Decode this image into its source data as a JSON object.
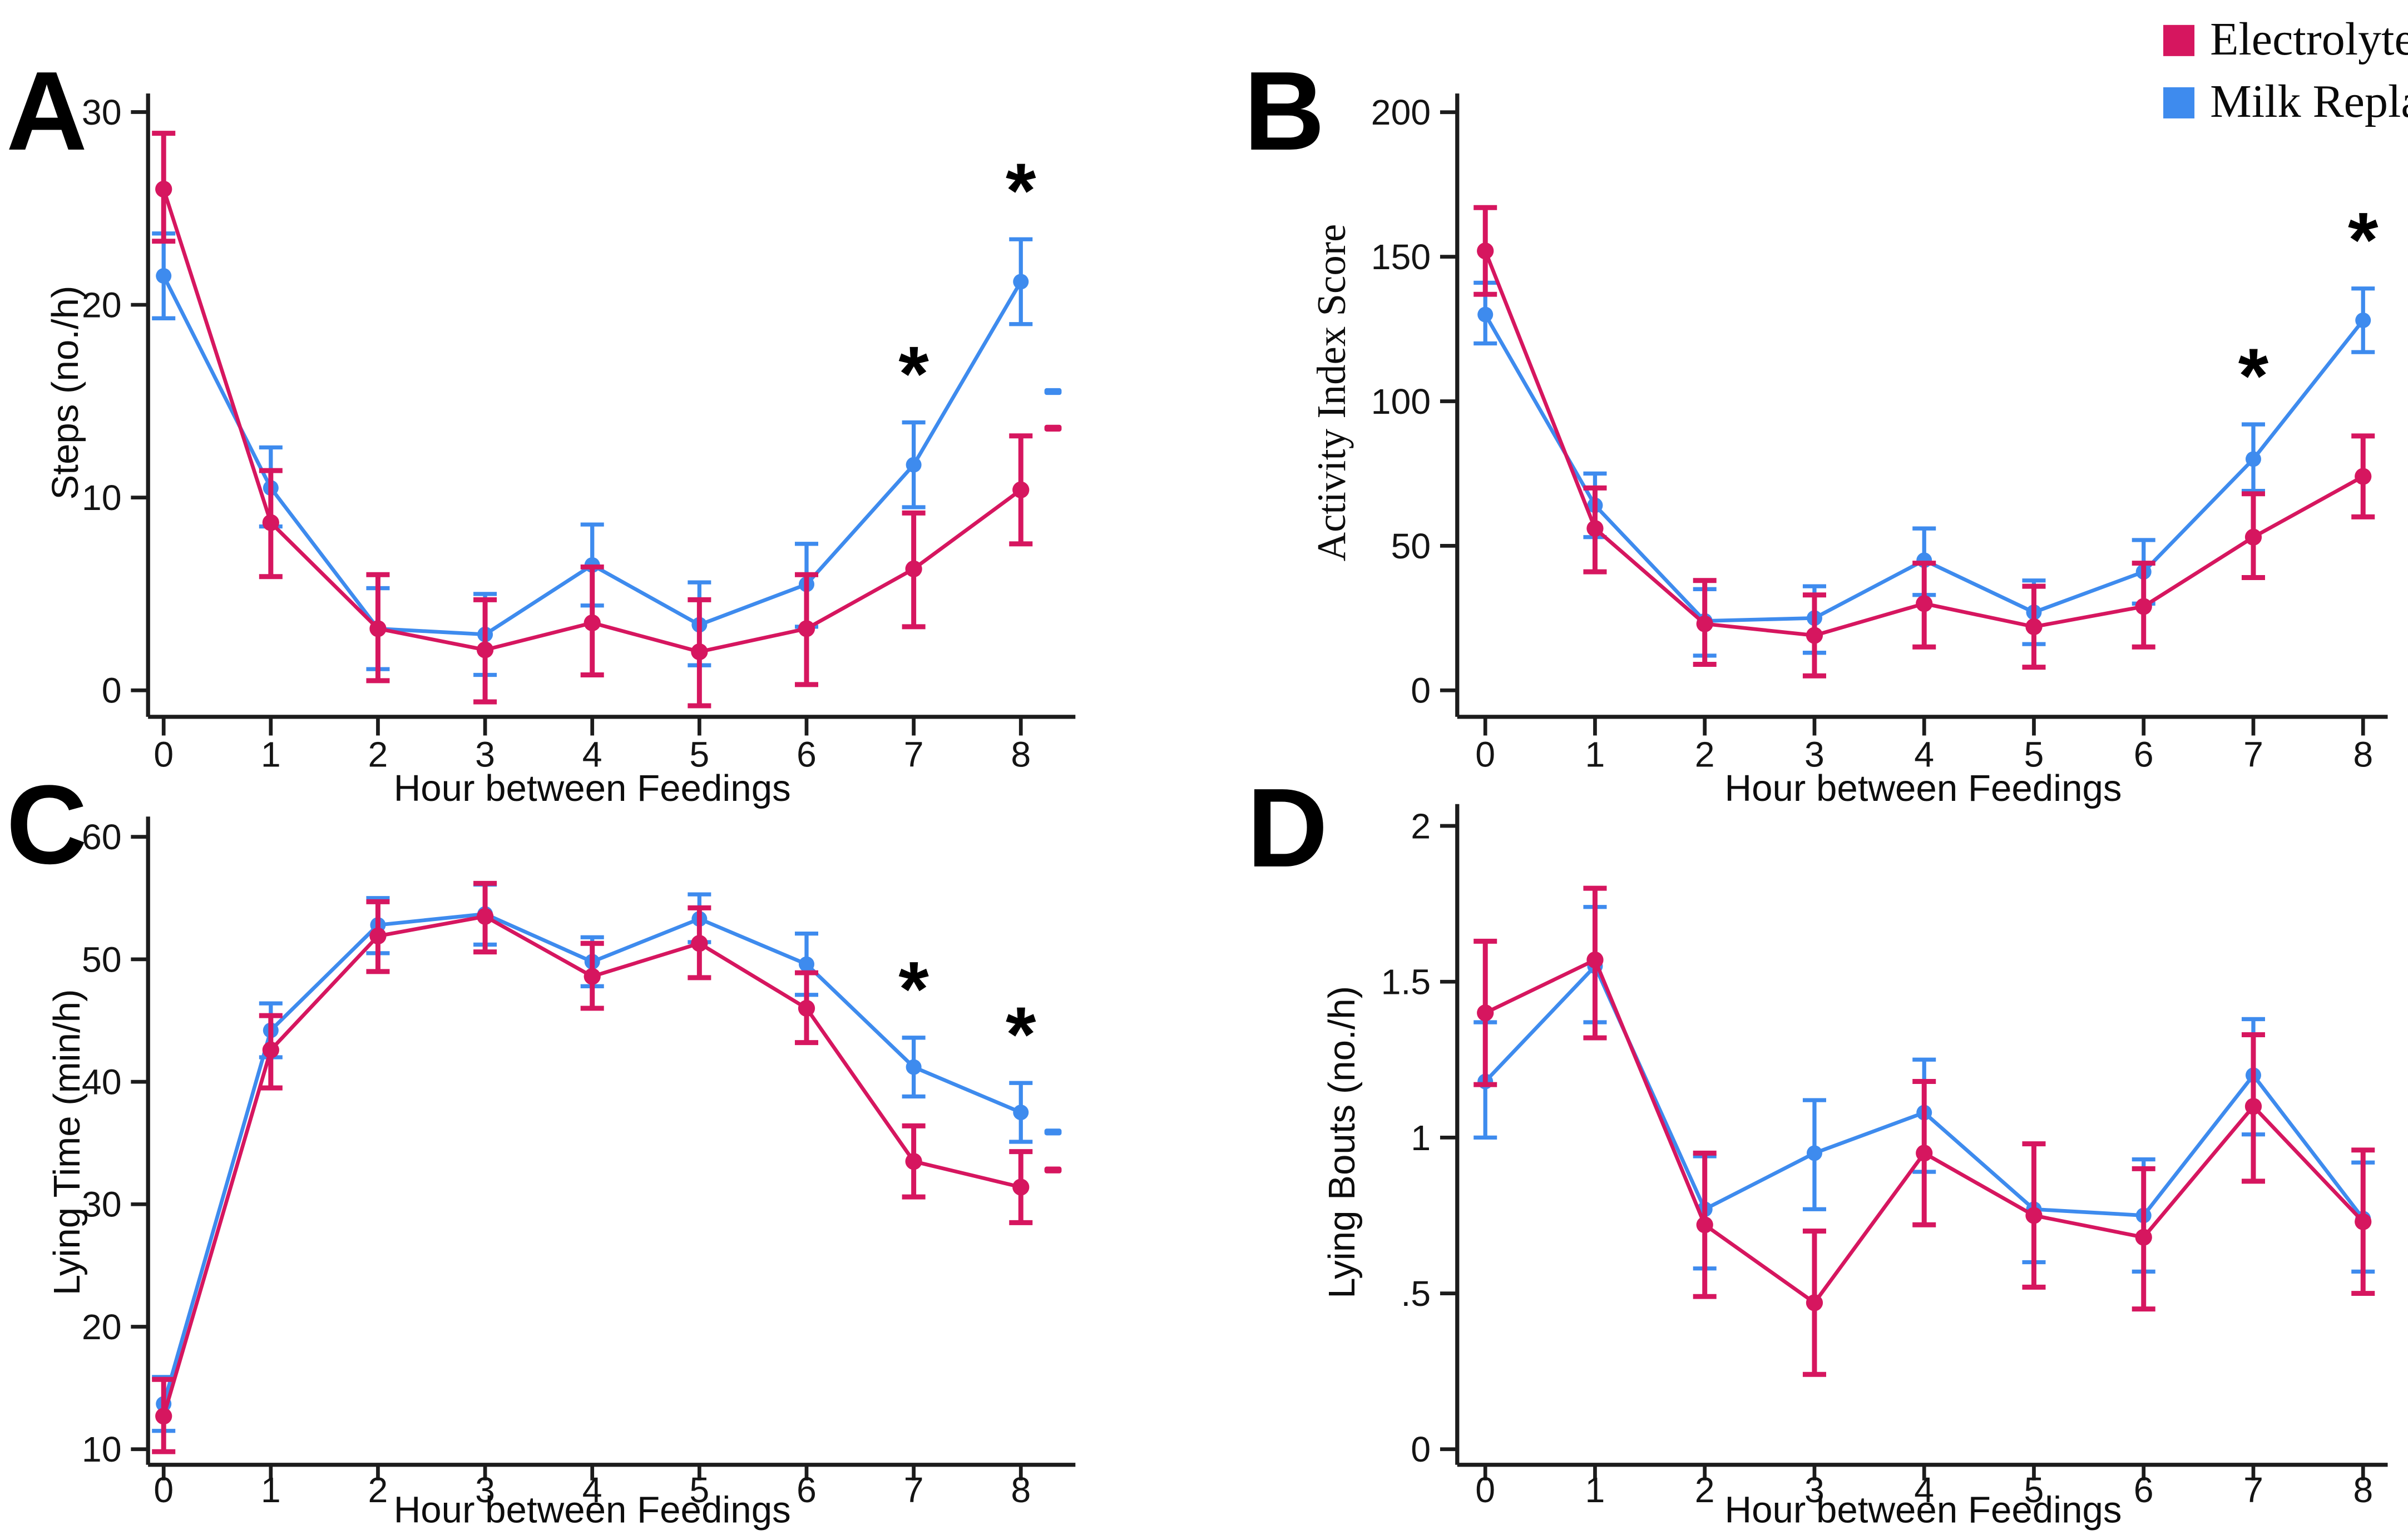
{
  "figure": {
    "background": "#ffffff",
    "accent_colors": {
      "electrolyte": "#d6165f",
      "milk_replacer": "#3e8bee"
    }
  },
  "legend": {
    "items": [
      {
        "label": "Electrolyte",
        "color": "#d6165f"
      },
      {
        "label": "Milk Replacer",
        "color": "#3e8bee"
      }
    ]
  },
  "chart_data": [
    {
      "panel_label": "A",
      "type": "line",
      "xlabel": "Hour between Feedings",
      "ylabel": "Steps (no./h)",
      "x": [
        0,
        1,
        2,
        3,
        4,
        5,
        6,
        7,
        8
      ],
      "ytick_values": [
        0,
        10,
        20,
        30
      ],
      "ytick_labels": [
        "0",
        "10",
        "20",
        "30"
      ],
      "ylim": [
        -2,
        31
      ],
      "grid": false,
      "series": [
        {
          "name": "Electrolyte",
          "color": "#d6165f",
          "values": [
            26.0,
            8.7,
            3.2,
            2.1,
            3.5,
            2.0,
            3.2,
            6.3,
            10.4
          ],
          "ci_low": [
            23.3,
            5.9,
            0.5,
            -0.6,
            0.8,
            -0.8,
            0.3,
            3.3,
            7.6
          ],
          "ci_high": [
            28.9,
            11.4,
            6.0,
            4.7,
            6.4,
            4.7,
            6.0,
            9.2,
            13.2
          ]
        },
        {
          "name": "Milk Replacer",
          "color": "#3e8bee",
          "values": [
            21.5,
            10.5,
            3.2,
            2.9,
            6.5,
            3.4,
            5.5,
            11.7,
            21.2
          ],
          "ci_low": [
            19.3,
            8.5,
            1.1,
            0.8,
            4.4,
            1.3,
            3.3,
            9.5,
            19.0
          ],
          "ci_high": [
            23.7,
            12.6,
            5.3,
            5.0,
            8.6,
            5.6,
            7.6,
            13.9,
            23.4
          ]
        }
      ],
      "significance_at_x": [
        7,
        8
      ],
      "significance_symbol": "*",
      "stray_marks": [
        {
          "series": "Milk Replacer",
          "x": 8.3,
          "value": 15.5
        },
        {
          "series": "Electrolyte",
          "x": 8.3,
          "value": 13.6
        }
      ]
    },
    {
      "panel_label": "B",
      "type": "line",
      "xlabel": "Hour between Feedings",
      "ylabel": "Activity Index Score",
      "x": [
        0,
        1,
        2,
        3,
        4,
        5,
        6,
        7,
        8
      ],
      "ytick_values": [
        0,
        50,
        100,
        150,
        200
      ],
      "ytick_labels": [
        "0",
        "50",
        "100",
        "150",
        "200"
      ],
      "ylim": [
        -10,
        210
      ],
      "grid": false,
      "series": [
        {
          "name": "Electrolyte",
          "color": "#d6165f",
          "values": [
            152,
            56,
            23,
            19,
            30,
            22,
            29,
            53,
            74
          ],
          "ci_low": [
            137,
            41,
            9,
            5,
            15,
            8,
            15,
            39,
            60
          ],
          "ci_high": [
            167,
            70,
            38,
            33,
            44,
            36,
            44,
            68,
            88
          ]
        },
        {
          "name": "Milk Replacer",
          "color": "#3e8bee",
          "values": [
            130,
            64,
            24,
            25,
            45,
            27,
            41,
            80,
            128
          ],
          "ci_low": [
            120,
            53,
            12,
            13,
            33,
            16,
            30,
            69,
            117
          ],
          "ci_high": [
            141,
            75,
            35,
            36,
            56,
            38,
            52,
            92,
            139
          ]
        }
      ],
      "significance_at_x": [
        7,
        8
      ],
      "significance_symbol": "*",
      "stray_marks": []
    },
    {
      "panel_label": "C",
      "type": "line",
      "xlabel": "Hour between Feedings",
      "ylabel": "Lying Time (min/h)",
      "x": [
        0,
        1,
        2,
        3,
        4,
        5,
        6,
        7,
        8
      ],
      "ytick_values": [
        10,
        20,
        30,
        40,
        50,
        60
      ],
      "ytick_labels": [
        "10",
        "20",
        "30",
        "40",
        "50",
        "60"
      ],
      "ylim": [
        9,
        61
      ],
      "grid": false,
      "series": [
        {
          "name": "Electrolyte",
          "color": "#d6165f",
          "values": [
            12.7,
            42.6,
            51.9,
            53.5,
            48.6,
            51.3,
            46.0,
            33.5,
            31.4
          ],
          "ci_low": [
            9.8,
            39.5,
            49.0,
            50.6,
            46.0,
            48.5,
            43.2,
            30.6,
            28.5
          ],
          "ci_high": [
            15.7,
            45.4,
            54.7,
            56.2,
            51.3,
            54.2,
            48.9,
            36.4,
            34.3
          ]
        },
        {
          "name": "Milk Replacer",
          "color": "#3e8bee",
          "values": [
            13.7,
            44.2,
            52.8,
            53.7,
            49.8,
            53.3,
            49.6,
            41.2,
            37.5
          ],
          "ci_low": [
            11.5,
            42.0,
            50.5,
            51.2,
            47.8,
            51.4,
            47.1,
            38.8,
            35.1
          ],
          "ci_high": [
            15.9,
            46.4,
            55.0,
            56.1,
            51.8,
            55.3,
            52.1,
            43.6,
            39.9
          ]
        }
      ],
      "significance_at_x": [
        7,
        8
      ],
      "significance_symbol": "*",
      "stray_marks": [
        {
          "series": "Milk Replacer",
          "x": 8.3,
          "value": 35.9
        },
        {
          "series": "Electrolyte",
          "x": 8.3,
          "value": 32.8
        }
      ]
    },
    {
      "panel_label": "D",
      "type": "line",
      "xlabel": "Hour between Feedings",
      "ylabel": "Lying Bouts (no./h)",
      "x": [
        0,
        1,
        2,
        3,
        4,
        5,
        6,
        7,
        8
      ],
      "ytick_values": [
        0,
        0.5,
        1,
        1.5,
        2
      ],
      "ytick_labels": [
        "0",
        ".5",
        "1",
        "1.5",
        "2"
      ],
      "ylim": [
        -0.05,
        2.05
      ],
      "grid": false,
      "series": [
        {
          "name": "Electrolyte",
          "color": "#d6165f",
          "values": [
            1.4,
            1.57,
            0.72,
            0.47,
            0.95,
            0.75,
            0.68,
            1.1,
            0.73
          ],
          "ci_low": [
            1.17,
            1.32,
            0.49,
            0.24,
            0.72,
            0.52,
            0.45,
            0.86,
            0.5
          ],
          "ci_high": [
            1.63,
            1.8,
            0.95,
            0.7,
            1.18,
            0.98,
            0.9,
            1.33,
            0.96
          ]
        },
        {
          "name": "Milk Replacer",
          "color": "#3e8bee",
          "values": [
            1.18,
            1.55,
            0.77,
            0.95,
            1.08,
            0.77,
            0.75,
            1.2,
            0.74
          ],
          "ci_low": [
            1.0,
            1.37,
            0.58,
            0.77,
            0.89,
            0.6,
            0.57,
            1.01,
            0.57
          ],
          "ci_high": [
            1.37,
            1.74,
            0.94,
            1.12,
            1.25,
            0.98,
            0.93,
            1.38,
            0.92
          ]
        }
      ],
      "significance_at_x": [],
      "significance_symbol": "*",
      "stray_marks": []
    }
  ]
}
